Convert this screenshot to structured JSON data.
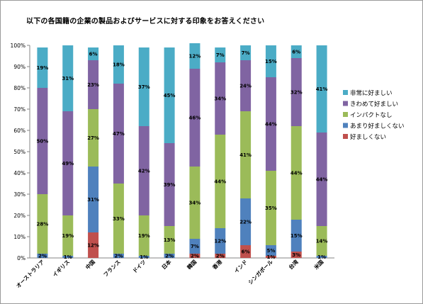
{
  "chart_data": {
    "type": "bar",
    "stacked": true,
    "percent_stacked": true,
    "title": "以下の各国籍の企業の製品およびサービスに対する印象をお答えください",
    "categories": [
      "オーストラリア",
      "イギリス",
      "中国",
      "フランス",
      "ドイツ",
      "日本",
      "韓国",
      "香港",
      "インド",
      "シンガポール",
      "台湾",
      "米国"
    ],
    "series": [
      {
        "name": "好ましくない",
        "color": "#c0504d",
        "values": [
          0,
          0,
          12,
          0,
          0,
          0,
          2,
          2,
          6,
          1,
          3,
          0
        ],
        "labels": [
          "",
          "",
          "12%",
          "",
          "",
          "",
          "2%",
          "2%",
          "6%",
          "1%",
          "3%",
          ""
        ]
      },
      {
        "name": "あまり好ましくない",
        "color": "#4f81bd",
        "values": [
          2,
          1,
          31,
          2,
          1,
          2,
          7,
          12,
          22,
          5,
          15,
          1
        ],
        "labels": [
          "2%",
          "1%",
          "31%",
          "2%",
          "1%",
          "2%",
          "7%",
          "12%",
          "22%",
          "5%",
          "15%",
          "1%"
        ]
      },
      {
        "name": "インパクトなし",
        "color": "#9bbb59",
        "values": [
          28,
          19,
          27,
          33,
          19,
          13,
          34,
          44,
          41,
          35,
          44,
          14
        ],
        "labels": [
          "28%",
          "19%",
          "27%",
          "33%",
          "19%",
          "13%",
          "34%",
          "44%",
          "41%",
          "35%",
          "44%",
          "14%"
        ]
      },
      {
        "name": "きわめて好ましい",
        "color": "#8064a2",
        "values": [
          50,
          49,
          23,
          47,
          42,
          39,
          46,
          34,
          24,
          44,
          32,
          44
        ],
        "labels": [
          "50%",
          "49%",
          "23%",
          "47%",
          "42%",
          "39%",
          "46%",
          "34%",
          "24%",
          "44%",
          "32%",
          "44%"
        ]
      },
      {
        "name": "非常に好ましい",
        "color": "#4bacc6",
        "values": [
          19,
          31,
          6,
          18,
          37,
          45,
          12,
          7,
          7,
          15,
          6,
          41
        ],
        "labels": [
          "19%",
          "31%",
          "6%",
          "18%",
          "37%",
          "45%",
          "12%",
          "7%",
          "7%",
          "15%",
          "6%",
          "41%"
        ]
      }
    ],
    "y_ticks": [
      "0%",
      "10%",
      "20%",
      "30%",
      "40%",
      "50%",
      "60%",
      "70%",
      "80%",
      "90%",
      "100%"
    ],
    "ylim": [
      0,
      100
    ],
    "legend_position": "right",
    "legend_order": [
      "非常に好ましい",
      "きわめて好ましい",
      "インパクトなし",
      "あまり好ましくない",
      "好ましくない"
    ],
    "grid": false
  }
}
